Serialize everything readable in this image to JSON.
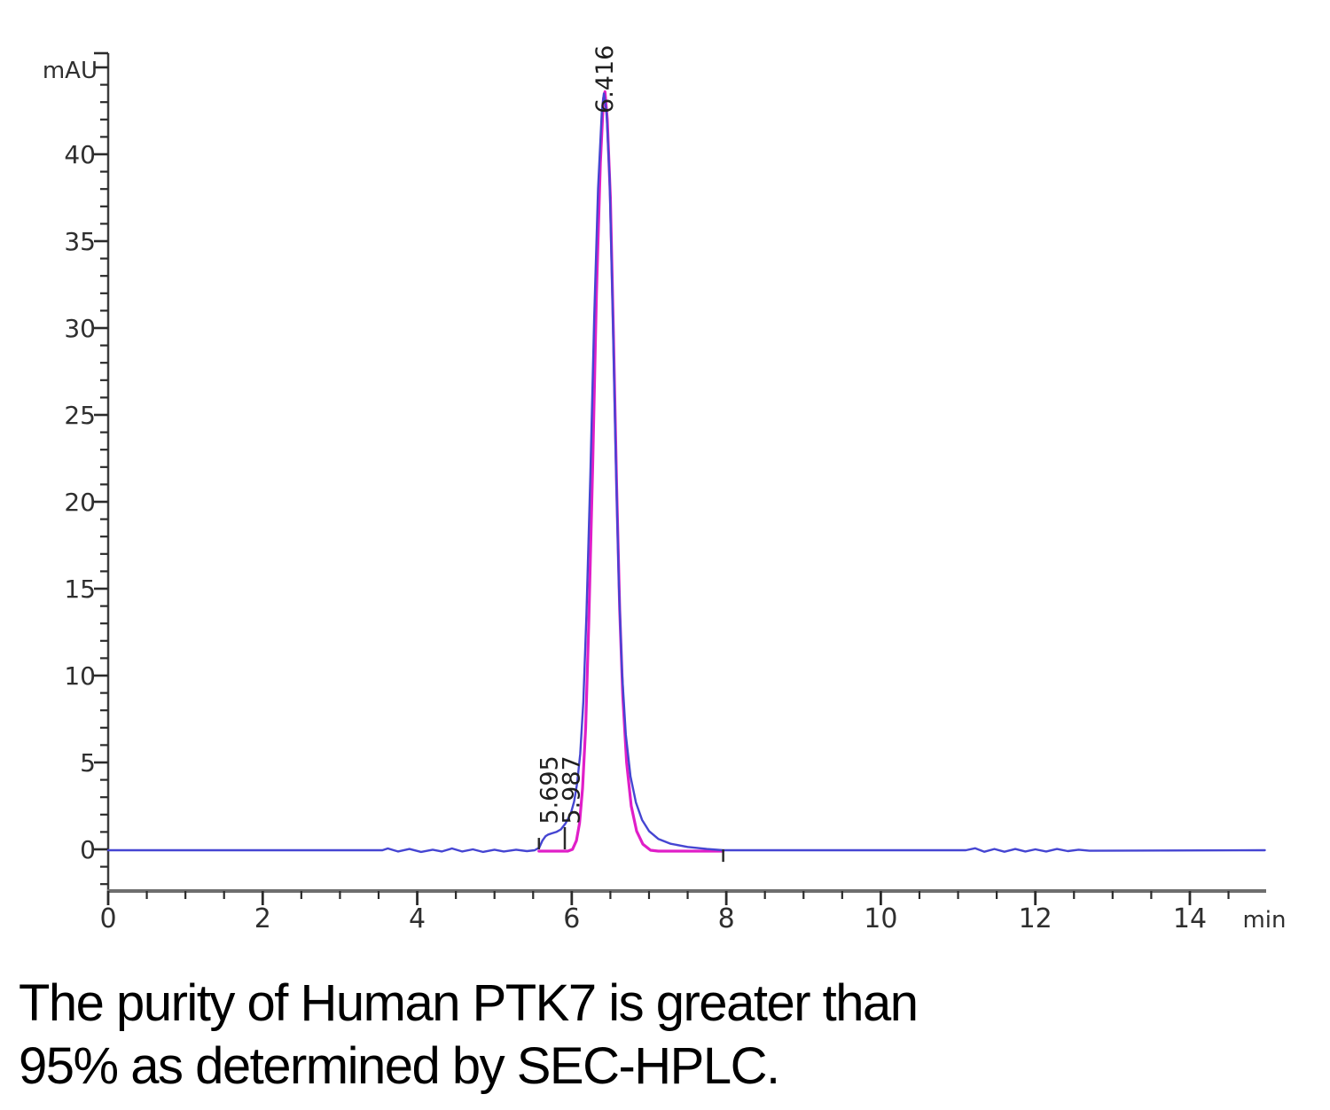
{
  "caption": {
    "line1": "The purity of Human PTK7 is greater than",
    "line2": "95% as determined by SEC-HPLC."
  },
  "chart_data": {
    "type": "line",
    "title": "",
    "xlabel": "min",
    "ylabel": "mAU",
    "xlim": [
      0,
      14.98
    ],
    "ylim": [
      -2.55,
      45.8
    ],
    "grid": false,
    "legend": "none",
    "x_major_ticks": [
      0,
      2,
      4,
      6,
      8,
      10,
      12,
      14
    ],
    "x_tick_labels": [
      "0",
      "2",
      "4",
      "6",
      "8",
      "10",
      "12",
      "14"
    ],
    "x_minor_step": 0.5,
    "y_major_ticks": [
      0,
      5,
      10,
      15,
      20,
      25,
      30,
      35,
      40,
      45
    ],
    "y_tick_labels": [
      "0",
      "5",
      "10",
      "15",
      "20",
      "25",
      "30",
      "35",
      "40"
    ],
    "y_labeled_values": [
      0,
      5,
      10,
      15,
      20,
      25,
      30,
      35,
      40
    ],
    "y_minor_step": 1,
    "colors": {
      "signal": "#4545d2",
      "integration": "#e01ec8",
      "axis_x": "#6e6e6e",
      "axis_y": "#3c3c3c",
      "ticks": "#2a2a2a",
      "labels": "#2f2f2f",
      "peak_labels": "#1f1f1f"
    },
    "series": [
      {
        "name": "integration-baseline",
        "color": "#e01ec8",
        "width": 3.2,
        "points": [
          [
            5.575,
            -0.1
          ],
          [
            5.95,
            -0.1
          ],
          [
            6.01,
            0.0
          ],
          [
            6.06,
            0.5
          ],
          [
            6.1,
            1.5
          ],
          [
            6.14,
            3.5
          ],
          [
            6.18,
            7.0
          ],
          [
            6.22,
            13.0
          ],
          [
            6.27,
            22.0
          ],
          [
            6.32,
            32.0
          ],
          [
            6.37,
            39.5
          ],
          [
            6.41,
            43.2
          ],
          [
            6.43,
            43.6
          ],
          [
            6.46,
            42.0
          ],
          [
            6.5,
            37.5
          ],
          [
            6.54,
            29.5
          ],
          [
            6.58,
            21.0
          ],
          [
            6.62,
            13.8
          ],
          [
            6.66,
            8.8
          ],
          [
            6.71,
            5.0
          ],
          [
            6.77,
            2.5
          ],
          [
            6.84,
            1.05
          ],
          [
            6.92,
            0.3
          ],
          [
            7.02,
            -0.05
          ],
          [
            7.12,
            -0.1
          ],
          [
            7.96,
            -0.1
          ]
        ]
      },
      {
        "name": "uv-signal",
        "color": "#4545d2",
        "width": 2.4,
        "points": [
          [
            0,
            -0.05
          ],
          [
            3.55,
            -0.05
          ],
          [
            3.62,
            0.05
          ],
          [
            3.75,
            -0.12
          ],
          [
            3.9,
            0.02
          ],
          [
            4.05,
            -0.15
          ],
          [
            4.2,
            -0.02
          ],
          [
            4.32,
            -0.12
          ],
          [
            4.45,
            0.05
          ],
          [
            4.58,
            -0.12
          ],
          [
            4.72,
            0.0
          ],
          [
            4.85,
            -0.15
          ],
          [
            5.0,
            -0.02
          ],
          [
            5.12,
            -0.12
          ],
          [
            5.28,
            -0.02
          ],
          [
            5.42,
            -0.1
          ],
          [
            5.52,
            -0.05
          ],
          [
            5.58,
            0.1
          ],
          [
            5.62,
            0.5
          ],
          [
            5.66,
            0.75
          ],
          [
            5.695,
            0.85
          ],
          [
            5.74,
            0.92
          ],
          [
            5.8,
            1.0
          ],
          [
            5.86,
            1.15
          ],
          [
            5.92,
            1.5
          ],
          [
            5.987,
            2.05
          ],
          [
            6.03,
            2.75
          ],
          [
            6.07,
            3.8
          ],
          [
            6.11,
            5.5
          ],
          [
            6.15,
            8.5
          ],
          [
            6.19,
            13.5
          ],
          [
            6.24,
            21.5
          ],
          [
            6.29,
            30.5
          ],
          [
            6.34,
            38.0
          ],
          [
            6.39,
            42.5
          ],
          [
            6.416,
            43.5
          ],
          [
            6.45,
            42.4
          ],
          [
            6.49,
            38.6
          ],
          [
            6.53,
            31.0
          ],
          [
            6.57,
            22.5
          ],
          [
            6.61,
            15.2
          ],
          [
            6.65,
            10.2
          ],
          [
            6.7,
            6.6
          ],
          [
            6.76,
            4.2
          ],
          [
            6.83,
            2.7
          ],
          [
            6.91,
            1.7
          ],
          [
            7.0,
            1.05
          ],
          [
            7.12,
            0.6
          ],
          [
            7.28,
            0.32
          ],
          [
            7.5,
            0.14
          ],
          [
            7.75,
            0.02
          ],
          [
            7.96,
            -0.05
          ],
          [
            11.1,
            -0.05
          ],
          [
            11.22,
            0.06
          ],
          [
            11.34,
            -0.14
          ],
          [
            11.47,
            0.02
          ],
          [
            11.6,
            -0.14
          ],
          [
            11.74,
            0.02
          ],
          [
            11.87,
            -0.12
          ],
          [
            12.0,
            0.0
          ],
          [
            12.14,
            -0.12
          ],
          [
            12.28,
            0.02
          ],
          [
            12.42,
            -0.1
          ],
          [
            12.56,
            -0.02
          ],
          [
            12.7,
            -0.08
          ],
          [
            14.97,
            -0.05
          ]
        ]
      }
    ],
    "peaks": [
      {
        "rt_label": "5.695",
        "rt": 5.695,
        "label_bottom_mau": 1.45
      },
      {
        "rt_label": "5.987",
        "rt": 5.987,
        "label_bottom_mau": 1.45
      },
      {
        "rt_label": "6.416",
        "rt": 6.416,
        "label_bottom_mau": 42.35
      }
    ],
    "integration_markers": [
      {
        "t": 5.575,
        "from_mau": 0.0,
        "to_mau": 0.66
      },
      {
        "t": 5.91,
        "from_mau": 0.0,
        "to_mau": 1.28
      },
      {
        "t": 7.96,
        "from_mau": 0.0,
        "to_mau": -0.72
      }
    ]
  }
}
